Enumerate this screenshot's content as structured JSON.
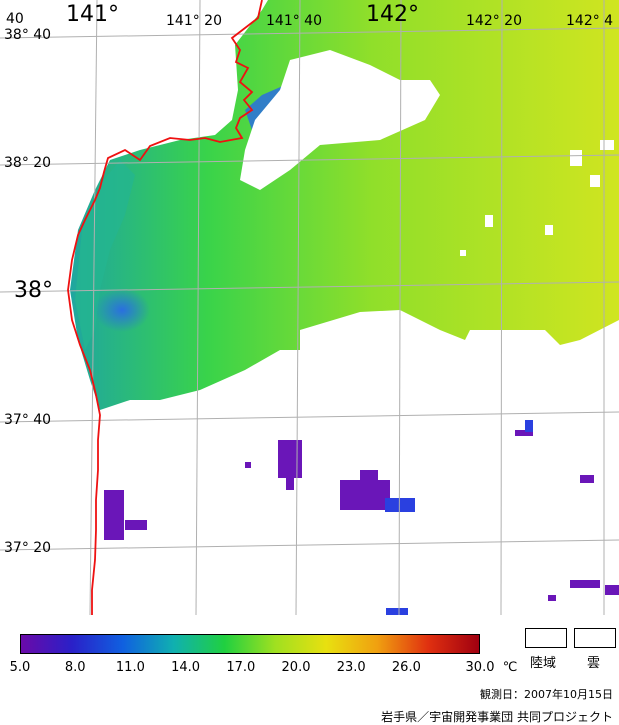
{
  "map": {
    "lon_labels": [
      {
        "text": "141°",
        "large": true
      },
      {
        "text": "141° 20",
        "large": false
      },
      {
        "text": "141° 40",
        "large": false
      },
      {
        "text": "142°",
        "large": true
      },
      {
        "text": "142° 20",
        "large": false
      },
      {
        "text": "142° 4",
        "large": false
      }
    ],
    "lat_labels": [
      {
        "text": "38° 40",
        "large": false
      },
      {
        "text": "38° 20",
        "large": false
      },
      {
        "text": "38°",
        "large": true
      },
      {
        "text": "37° 40",
        "large": false
      },
      {
        "text": "37° 20",
        "large": false
      }
    ],
    "corner_label": "40",
    "colors": {
      "coastline": "#ee1111",
      "grid": "#b0b0b0",
      "sst_cool": "#1fa6a0",
      "sst_mid": "#39d34a",
      "sst_warm": "#c8e320",
      "sst_cold_blue": "#2a6fe0",
      "low_purple": "#6a16b8"
    }
  },
  "scale": {
    "ticks": [
      "5.0",
      "8.0",
      "11.0",
      "14.0",
      "17.0",
      "20.0",
      "23.0",
      "26.0",
      "30.0"
    ],
    "unit": "℃",
    "gradient": [
      "#6a0aa8",
      "#2a20c8",
      "#1060e0",
      "#10b0b0",
      "#20d040",
      "#a0e020",
      "#e8e010",
      "#f0a010",
      "#e03010",
      "#a00010"
    ]
  },
  "legend": {
    "land_label": "陸域",
    "cloud_label": "雲"
  },
  "footer": {
    "obs_date": "観測日：2007年10月15日",
    "credit": "岩手県／宇宙開発事業団 共同プロジェクト"
  }
}
